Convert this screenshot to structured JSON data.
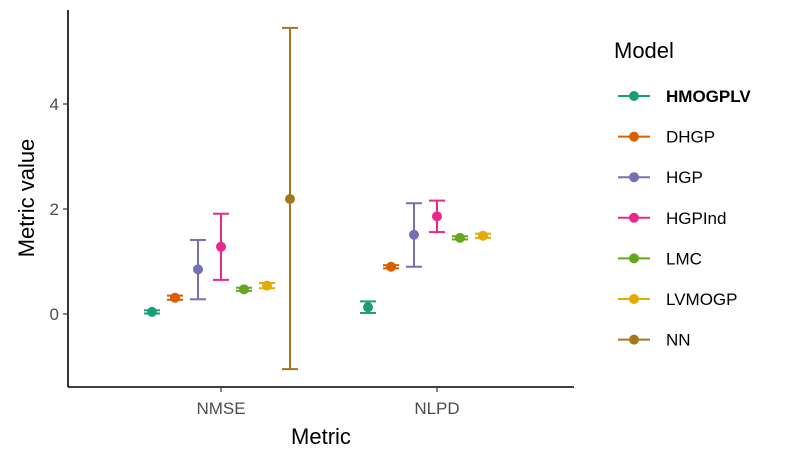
{
  "chart_data": {
    "type": "errorbar",
    "xlabel": "Metric",
    "ylabel": "Metric value",
    "categories": [
      "NMSE",
      "NLPD"
    ],
    "yticks": [
      0,
      2,
      4
    ],
    "ylim": [
      -1.35,
      5.8
    ],
    "legend": {
      "title": "Model",
      "placement": "right",
      "bold_entry": "HMOGPLV"
    },
    "series": [
      {
        "name": "HMOGPLV",
        "color": "#1b9e77",
        "points": [
          {
            "category": "NMSE",
            "mean": 0.04,
            "lower": 0.01,
            "upper": 0.07
          },
          {
            "category": "NLPD",
            "mean": 0.13,
            "lower": 0.02,
            "upper": 0.24
          }
        ]
      },
      {
        "name": "DHGP",
        "color": "#d95f02",
        "points": [
          {
            "category": "NMSE",
            "mean": 0.31,
            "lower": 0.27,
            "upper": 0.35
          },
          {
            "category": "NLPD",
            "mean": 0.9,
            "lower": 0.87,
            "upper": 0.93
          }
        ]
      },
      {
        "name": "HGP",
        "color": "#7570b3",
        "points": [
          {
            "category": "NMSE",
            "mean": 0.85,
            "lower": 0.28,
            "upper": 1.41
          },
          {
            "category": "NLPD",
            "mean": 1.51,
            "lower": 0.9,
            "upper": 2.11
          }
        ]
      },
      {
        "name": "HGPInd",
        "color": "#e7298a",
        "points": [
          {
            "category": "NMSE",
            "mean": 1.28,
            "lower": 0.65,
            "upper": 1.91
          },
          {
            "category": "NLPD",
            "mean": 1.86,
            "lower": 1.56,
            "upper": 2.16
          }
        ]
      },
      {
        "name": "LMC",
        "color": "#66a61e",
        "points": [
          {
            "category": "NMSE",
            "mean": 0.47,
            "lower": 0.44,
            "upper": 0.5
          },
          {
            "category": "NLPD",
            "mean": 1.45,
            "lower": 1.42,
            "upper": 1.48
          }
        ]
      },
      {
        "name": "LVMOGP",
        "color": "#e6ab02",
        "points": [
          {
            "category": "NMSE",
            "mean": 0.54,
            "lower": 0.49,
            "upper": 0.59
          },
          {
            "category": "NLPD",
            "mean": 1.49,
            "lower": 1.45,
            "upper": 1.53
          }
        ]
      },
      {
        "name": "NN",
        "color": "#a6761d",
        "points": [
          {
            "category": "NMSE",
            "mean": 2.19,
            "lower": -1.05,
            "upper": 5.45
          }
        ]
      }
    ]
  }
}
